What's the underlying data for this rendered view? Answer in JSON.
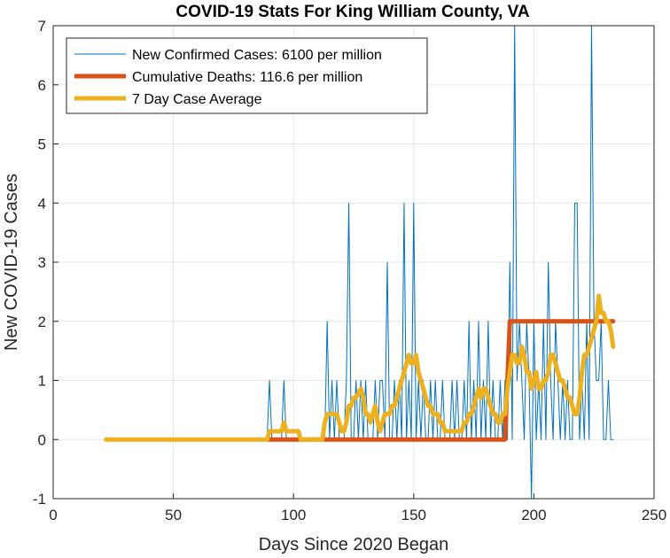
{
  "chart_data": {
    "type": "line",
    "title": "COVID-19 Stats For King William County, VA",
    "xlabel": "Days Since 2020 Began",
    "ylabel": "New COVID-19 Cases",
    "xlim": [
      0,
      250
    ],
    "ylim": [
      -1,
      7
    ],
    "xticks": [
      0,
      50,
      100,
      150,
      200,
      250
    ],
    "yticks": [
      -1,
      0,
      1,
      2,
      3,
      4,
      5,
      6,
      7
    ],
    "grid": true,
    "legend_position": "top-left",
    "series": [
      {
        "name": "New Confirmed Cases: 6100 per million",
        "color": "#0072BD",
        "style": "thin",
        "x": [
          22,
          89,
          90,
          91,
          95,
          96,
          97,
          112,
          113,
          114,
          115,
          116,
          117,
          118,
          119,
          120,
          121,
          122,
          123,
          124,
          125,
          126,
          127,
          128,
          129,
          130,
          131,
          132,
          133,
          134,
          135,
          136,
          137,
          138,
          139,
          140,
          141,
          142,
          143,
          144,
          145,
          146,
          147,
          148,
          149,
          150,
          151,
          152,
          153,
          154,
          155,
          156,
          157,
          158,
          159,
          160,
          161,
          162,
          163,
          164,
          165,
          166,
          167,
          168,
          169,
          170,
          171,
          172,
          173,
          174,
          175,
          176,
          177,
          178,
          179,
          180,
          181,
          182,
          183,
          184,
          185,
          186,
          187,
          188,
          189,
          190,
          191,
          192,
          193,
          194,
          195,
          196,
          197,
          198,
          199,
          200,
          201,
          202,
          203,
          204,
          205,
          206,
          207,
          208,
          209,
          210,
          211,
          212,
          213,
          214,
          215,
          216,
          217,
          218,
          219,
          220,
          221,
          222,
          223,
          224,
          225,
          226,
          227,
          228,
          229,
          230,
          231,
          232,
          233
        ],
        "values": [
          0,
          0,
          1,
          0,
          0,
          1,
          0,
          0,
          0,
          2,
          0,
          1,
          0,
          1,
          0,
          0,
          0,
          1,
          4,
          0,
          0,
          1,
          0,
          1,
          0,
          1,
          0,
          0,
          0,
          1,
          0,
          1,
          1,
          0,
          3,
          0,
          0,
          1,
          0,
          1,
          0,
          4,
          0,
          1,
          0,
          4,
          0,
          1,
          0,
          1,
          0,
          0,
          1,
          0,
          1,
          0,
          0,
          1,
          0,
          0,
          0,
          1,
          0,
          1,
          0,
          0,
          1,
          0,
          2,
          0,
          1,
          0,
          2,
          0,
          1,
          0,
          2,
          0,
          1,
          0,
          0,
          1,
          0,
          1,
          0,
          3,
          0,
          7,
          1,
          2,
          1,
          0,
          2,
          1,
          -1,
          2,
          0,
          1,
          0,
          2,
          0,
          3,
          1,
          0,
          2,
          1,
          0,
          1,
          0,
          1,
          0,
          0,
          4,
          4,
          0,
          1,
          0,
          2,
          0,
          7,
          2,
          1,
          1,
          2,
          0,
          0,
          1,
          0,
          0
        ]
      },
      {
        "name": "Cumulative Deaths: 116.6 per million",
        "color": "#D95319",
        "style": "thick",
        "x": [
          89,
          188,
          190,
          233
        ],
        "values": [
          0,
          0,
          2,
          2
        ]
      },
      {
        "name": "7 Day Case Average",
        "color": "#EDB120",
        "style": "thick",
        "x": [
          22,
          89,
          90,
          95,
          96,
          97,
          100,
          102,
          103,
          112,
          113,
          114,
          115,
          118,
          119,
          120,
          121,
          122,
          123,
          124,
          125,
          126,
          128,
          129,
          130,
          131,
          132,
          133,
          134,
          135,
          136,
          137,
          138,
          139,
          140,
          141,
          142,
          143,
          144,
          145,
          146,
          147,
          148,
          149,
          150,
          151,
          152,
          153,
          154,
          155,
          156,
          157,
          158,
          159,
          160,
          161,
          162,
          163,
          164,
          165,
          166,
          168,
          170,
          171,
          172,
          173,
          174,
          175,
          176,
          177,
          178,
          179,
          180,
          181,
          182,
          183,
          184,
          185,
          186,
          187,
          188,
          189,
          190,
          191,
          192,
          193,
          194,
          195,
          196,
          197,
          198,
          199,
          200,
          201,
          202,
          203,
          204,
          205,
          206,
          207,
          208,
          209,
          210,
          211,
          212,
          213,
          214,
          215,
          216,
          217,
          218,
          219,
          220,
          221,
          222,
          223,
          224,
          225,
          226,
          227,
          228,
          229,
          230,
          231,
          232,
          233
        ],
        "values": [
          0,
          0,
          0.14,
          0.14,
          0.29,
          0.14,
          0.14,
          0.14,
          0.0,
          0.0,
          0.29,
          0.43,
          0.43,
          0.43,
          0.29,
          0.14,
          0.14,
          0.29,
          0.57,
          0.57,
          0.71,
          0.71,
          0.86,
          0.71,
          0.43,
          0.43,
          0.29,
          0.43,
          0.57,
          0.29,
          0.14,
          0.29,
          0.43,
          0.43,
          0.43,
          0.57,
          0.57,
          0.71,
          0.86,
          1.0,
          1.14,
          1.29,
          1.43,
          1.29,
          1.29,
          1.43,
          1.14,
          1.0,
          0.86,
          0.71,
          0.57,
          0.57,
          0.43,
          0.43,
          0.43,
          0.29,
          0.29,
          0.14,
          0.14,
          0.14,
          0.14,
          0.14,
          0.14,
          0.29,
          0.29,
          0.43,
          0.43,
          0.57,
          0.71,
          0.86,
          0.71,
          0.86,
          0.86,
          0.71,
          0.57,
          0.43,
          0.43,
          0.29,
          0.29,
          0.43,
          0.43,
          0.86,
          1.14,
          1.43,
          1.43,
          1.29,
          1.29,
          1.57,
          1.43,
          1.14,
          1.14,
          0.86,
          1.0,
          1.14,
          0.86,
          0.86,
          1.0,
          1.0,
          1.14,
          1.43,
          1.43,
          1.29,
          1.14,
          1.0,
          1.0,
          0.86,
          0.71,
          0.71,
          0.57,
          0.43,
          0.43,
          0.71,
          1.14,
          1.43,
          1.43,
          1.57,
          1.71,
          1.86,
          2.0,
          2.43,
          2.14,
          2.14,
          2.0,
          2.0,
          1.86,
          1.57
        ]
      }
    ]
  }
}
